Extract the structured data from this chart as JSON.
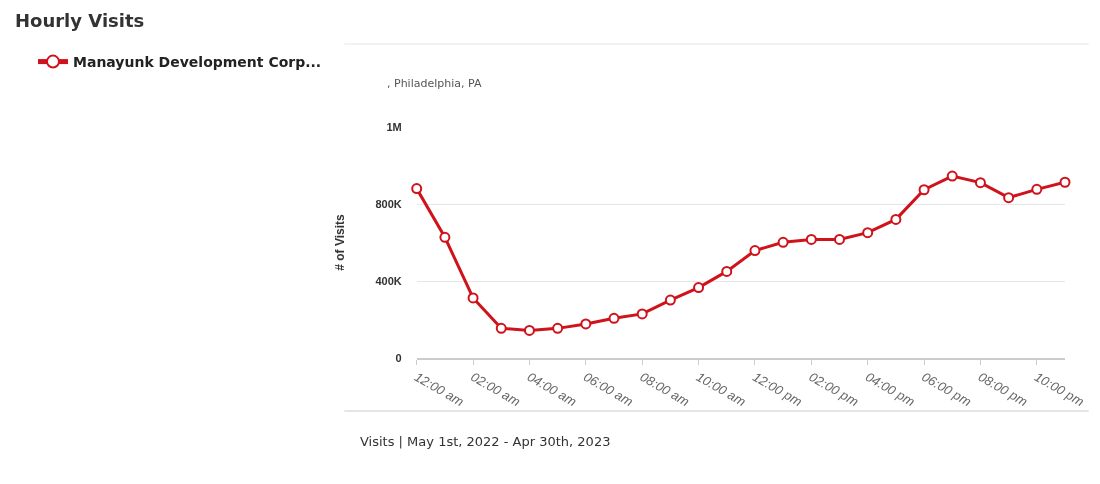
{
  "chart_data": {
    "type": "line",
    "title": "Hourly Visits",
    "ylabel": "# of Visits",
    "x": [
      0,
      1,
      2,
      3,
      4,
      5,
      6,
      7,
      8,
      9,
      10,
      11,
      12,
      13,
      14,
      15,
      16,
      17,
      18,
      19,
      20,
      21,
      22,
      23
    ],
    "series": [
      {
        "name": "Manayunk Development Corp...",
        "color": "#d0121b",
        "values": [
          880000,
          627000,
          312000,
          154000,
          143000,
          154000,
          177000,
          206000,
          229000,
          301000,
          366000,
          450000,
          558000,
          601000,
          616000,
          616000,
          651000,
          720000,
          874000,
          945000,
          911000,
          833000,
          876000,
          913000
        ]
      }
    ],
    "xlim": [
      0,
      23
    ],
    "xticks": [
      {
        "value": 0,
        "label": "12:00 am"
      },
      {
        "value": 2,
        "label": "02:00 am"
      },
      {
        "value": 4,
        "label": "04:00 am"
      },
      {
        "value": 6,
        "label": "06:00 am"
      },
      {
        "value": 8,
        "label": "08:00 am"
      },
      {
        "value": 10,
        "label": "10:00 am"
      },
      {
        "value": 12,
        "label": "12:00 pm"
      },
      {
        "value": 14,
        "label": "02:00 pm"
      },
      {
        "value": 16,
        "label": "04:00 pm"
      },
      {
        "value": 18,
        "label": "06:00 pm"
      },
      {
        "value": 20,
        "label": "08:00 pm"
      },
      {
        "value": 22,
        "label": "10:00 pm"
      }
    ],
    "ylim": [
      0,
      1200000
    ],
    "yticks": [
      {
        "value": 0,
        "label": "0"
      },
      {
        "value": 400000,
        "label": "400K"
      },
      {
        "value": 800000,
        "label": "800K"
      },
      {
        "value": 1200000,
        "label": "1M"
      }
    ],
    "grid": "y",
    "legend": "top left",
    "marker": "circle",
    "line_style": "solid",
    "annotations": [
      ", Philadelphia, PA",
      "Visits | May 1st, 2022 - Apr 30th, 2023"
    ]
  }
}
